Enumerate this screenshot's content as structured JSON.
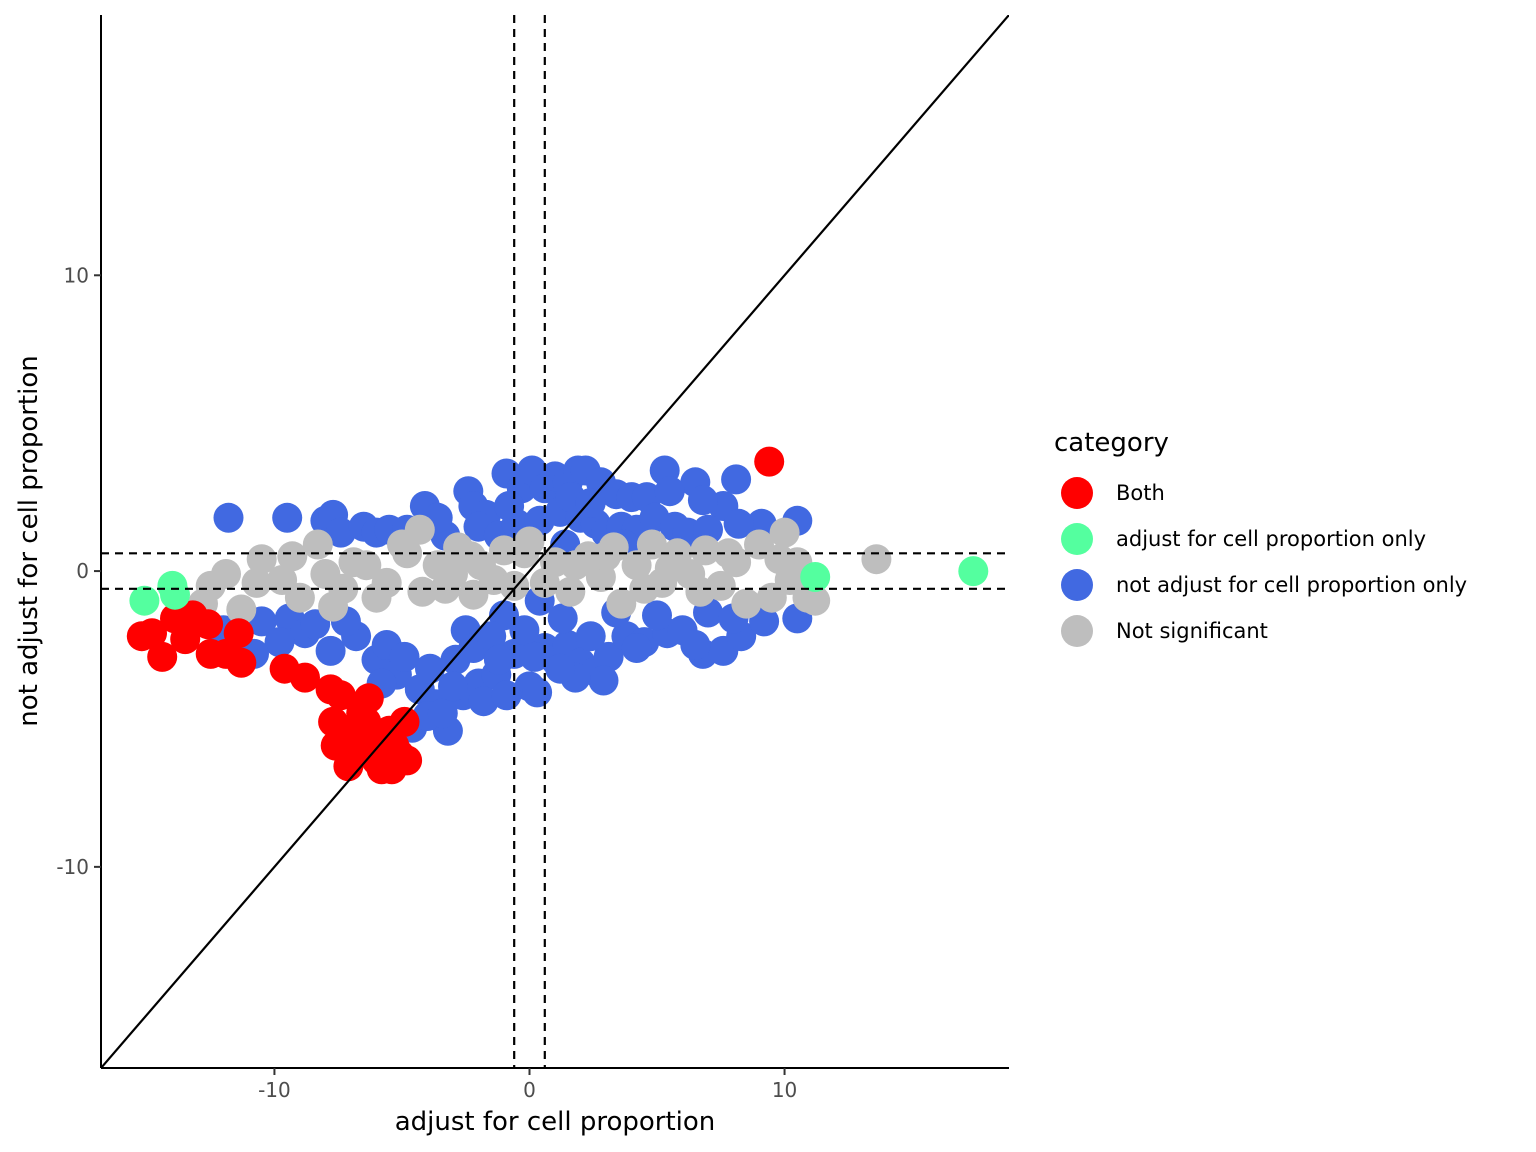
{
  "chart_data": {
    "type": "scatter",
    "xlabel": "adjust for cell proportion",
    "ylabel": "not adjust for cell proportion",
    "xlim": [
      -16.8,
      18.8
    ],
    "ylim": [
      -16.8,
      18.8
    ],
    "x_ticks": [
      -10,
      0,
      10
    ],
    "x_tick_labels": [
      "-10",
      "0",
      "10"
    ],
    "y_ticks": [
      -10,
      0,
      10
    ],
    "y_tick_labels": [
      "-10",
      "0",
      "10"
    ],
    "grid": false,
    "legend": {
      "title": "category",
      "placement": "right",
      "entries": [
        {
          "label": "Both",
          "color": "#ff0000"
        },
        {
          "label": "adjust for cell proportion only",
          "color": "#54ff9f"
        },
        {
          "label": "not adjust for cell proportion only",
          "color": "#4169e1"
        },
        {
          "label": "Not significant",
          "color": "#bebebe"
        }
      ]
    },
    "reference_lines": {
      "identity_line": true,
      "vertical_dashed_x": [
        -0.6,
        0.6
      ],
      "horizontal_dashed_y": [
        -0.6,
        0.6
      ]
    },
    "series": [
      {
        "name": "not adjust for cell proportion only",
        "color": "#4169e1",
        "points": [
          [
            -11.8,
            1.8
          ],
          [
            -9.5,
            1.8
          ],
          [
            -8,
            1.7
          ],
          [
            -7.7,
            1.9
          ],
          [
            -7.4,
            1.3
          ],
          [
            -6.5,
            1.5
          ],
          [
            -6,
            1.3
          ],
          [
            -5.5,
            1.4
          ],
          [
            -4.1,
            2.2
          ],
          [
            -3.3,
            1.2
          ],
          [
            -2.4,
            2.7
          ],
          [
            -2.2,
            2.2
          ],
          [
            -1.7,
            1.9
          ],
          [
            -0.9,
            3.3
          ],
          [
            -0.3,
            2.8
          ],
          [
            0.1,
            3.4
          ],
          [
            0.6,
            2.8
          ],
          [
            1,
            3.2
          ],
          [
            1.5,
            3
          ],
          [
            1.9,
            3.4
          ],
          [
            2.2,
            3.4
          ],
          [
            2.8,
            3
          ],
          [
            3.4,
            2.6
          ],
          [
            4,
            2.5
          ],
          [
            4.6,
            2.5
          ],
          [
            5.3,
            3.4
          ],
          [
            6.5,
            3
          ],
          [
            7.6,
            2.2
          ],
          [
            8.1,
            3.1
          ],
          [
            9.1,
            1.6
          ],
          [
            10.5,
            1.7
          ],
          [
            -2,
            1.5
          ],
          [
            -1.2,
            1.2
          ],
          [
            -0.5,
            1.6
          ],
          [
            0.4,
            1.7
          ],
          [
            1.2,
            2
          ],
          [
            2,
            1.8
          ],
          [
            2.6,
            1.6
          ],
          [
            3,
            1.3
          ],
          [
            3.6,
            1.5
          ],
          [
            4.2,
            1.4
          ],
          [
            4.9,
            1.8
          ],
          [
            5.7,
            1.5
          ],
          [
            6.2,
            1.3
          ],
          [
            7,
            1.4
          ],
          [
            8.2,
            1.6
          ],
          [
            1.4,
            0.9
          ],
          [
            3.7,
            0.9
          ],
          [
            -0.8,
            2.2
          ],
          [
            1.6,
            2.5
          ],
          [
            2.4,
            2.3
          ],
          [
            -3.6,
            1.8
          ],
          [
            -4.8,
            1.4
          ],
          [
            5.5,
            2.7
          ],
          [
            6.8,
            2.4
          ],
          [
            -12,
            -2
          ],
          [
            -10.5,
            -1.7
          ],
          [
            -9.4,
            -1.6
          ],
          [
            -8.8,
            -2.1
          ],
          [
            -7.8,
            -2.7
          ],
          [
            -6.8,
            -2.2
          ],
          [
            -6,
            -3
          ],
          [
            -5.2,
            -3.5
          ],
          [
            -4.3,
            -4
          ],
          [
            -3.7,
            -4.5
          ],
          [
            -3.2,
            -5.4
          ],
          [
            -2.6,
            -4.2
          ],
          [
            -2,
            -3.8
          ],
          [
            -1.3,
            -3.5
          ],
          [
            -0.6,
            -2.8
          ],
          [
            0,
            -3.9
          ],
          [
            0.6,
            -2.6
          ],
          [
            1,
            -3
          ],
          [
            1.5,
            -2.5
          ],
          [
            2,
            -3.1
          ],
          [
            2.6,
            -3.4
          ],
          [
            3.1,
            -2.9
          ],
          [
            3.8,
            -2.2
          ],
          [
            4.5,
            -2.4
          ],
          [
            5.4,
            -2.1
          ],
          [
            6,
            -2
          ],
          [
            6.8,
            -2.8
          ],
          [
            7.6,
            -2.7
          ],
          [
            8.3,
            -2.2
          ],
          [
            9.2,
            -1.7
          ],
          [
            10.5,
            -1.6
          ],
          [
            -4.6,
            -5.3
          ],
          [
            -4,
            -4.9
          ],
          [
            -3.4,
            -4.8
          ],
          [
            -1.8,
            -4.4
          ],
          [
            -0.9,
            -4.2
          ],
          [
            0.3,
            -4.1
          ],
          [
            2.9,
            -3.7
          ],
          [
            1.8,
            -3.6
          ],
          [
            0.4,
            -1
          ],
          [
            -2.5,
            -2
          ],
          [
            -1,
            -1.5
          ],
          [
            1.3,
            -1.6
          ],
          [
            3.4,
            -1.4
          ],
          [
            5,
            -1.5
          ],
          [
            7,
            -1.4
          ],
          [
            8,
            -1.6
          ],
          [
            -8.4,
            -1.8
          ],
          [
            -9.8,
            -2.4
          ],
          [
            -10.8,
            -2.8
          ],
          [
            -7.2,
            -1.7
          ],
          [
            -5.6,
            -2.5
          ],
          [
            -4.9,
            -2.9
          ],
          [
            -3.9,
            -3.3
          ],
          [
            -2.9,
            -3
          ],
          [
            -2.2,
            -2.6
          ],
          [
            -1.5,
            -2.2
          ],
          [
            -0.2,
            -2
          ],
          [
            2.4,
            -2.2
          ],
          [
            4.2,
            -2.6
          ],
          [
            6.5,
            -2.5
          ],
          [
            -3,
            -3.9
          ],
          [
            -1.2,
            -3
          ],
          [
            0.2,
            -2.9
          ],
          [
            1.2,
            -3.3
          ],
          [
            -5.8,
            -3.8
          ]
        ]
      },
      {
        "name": "Not significant",
        "color": "#bebebe",
        "points": [
          [
            -12.8,
            -1.1
          ],
          [
            -12.5,
            -0.5
          ],
          [
            -11.3,
            -1.3
          ],
          [
            -10.7,
            -0.4
          ],
          [
            -10.5,
            0.4
          ],
          [
            -9.7,
            -0.3
          ],
          [
            -9,
            -0.9
          ],
          [
            -8.3,
            0.9
          ],
          [
            -8,
            -0.1
          ],
          [
            -7.3,
            -0.6
          ],
          [
            -6.9,
            0.3
          ],
          [
            -6.4,
            0.2
          ],
          [
            -5.6,
            -0.4
          ],
          [
            -4.8,
            0.6
          ],
          [
            -4.3,
            1.4
          ],
          [
            -4.2,
            -0.7
          ],
          [
            -3.6,
            0.2
          ],
          [
            -3,
            -0.1
          ],
          [
            -2.3,
            0.5
          ],
          [
            -2.2,
            -0.8
          ],
          [
            -1.4,
            -0.3
          ],
          [
            -1,
            0.7
          ],
          [
            -0.6,
            -0.5
          ],
          [
            0,
            1
          ],
          [
            0.6,
            -0.4
          ],
          [
            1,
            0.3
          ],
          [
            1.6,
            -0.7
          ],
          [
            2.3,
            0.5
          ],
          [
            2.8,
            -0.2
          ],
          [
            3.3,
            0.8
          ],
          [
            3.6,
            -1.1
          ],
          [
            4.2,
            0.2
          ],
          [
            4.8,
            0.9
          ],
          [
            5.2,
            -0.4
          ],
          [
            5.8,
            0.6
          ],
          [
            6.3,
            -0.1
          ],
          [
            6.9,
            0.7
          ],
          [
            7.5,
            -0.5
          ],
          [
            8.1,
            0.3
          ],
          [
            8.5,
            -1.1
          ],
          [
            9,
            0.9
          ],
          [
            9.5,
            -0.9
          ],
          [
            10,
            1.3
          ],
          [
            10.5,
            0.3
          ],
          [
            10.9,
            -0.9
          ],
          [
            11.2,
            -1
          ],
          [
            13.6,
            0.4
          ],
          [
            -11.9,
            -0.1
          ],
          [
            -7.7,
            -1.2
          ],
          [
            -5,
            0.9
          ],
          [
            -3.3,
            -0.6
          ],
          [
            -1.9,
            0.2
          ],
          [
            -0.2,
            0.6
          ],
          [
            1.8,
            0.2
          ],
          [
            3,
            0.5
          ],
          [
            4.5,
            -0.6
          ],
          [
            5.5,
            0.1
          ],
          [
            6.7,
            -0.7
          ],
          [
            7.8,
            0.6
          ],
          [
            9.8,
            0.4
          ],
          [
            10.2,
            -0.3
          ],
          [
            -9.3,
            0.5
          ],
          [
            -6,
            -0.9
          ],
          [
            -2.8,
            0.8
          ]
        ]
      },
      {
        "name": "Both",
        "color": "#ff0000",
        "points": [
          [
            9.4,
            3.7
          ],
          [
            -15.2,
            -2.2
          ],
          [
            -14.8,
            -2.1
          ],
          [
            -14.4,
            -2.9
          ],
          [
            -13.9,
            -1.6
          ],
          [
            -13.5,
            -2.3
          ],
          [
            -13.2,
            -1.5
          ],
          [
            -12.6,
            -1.8
          ],
          [
            -12.5,
            -2.8
          ],
          [
            -11.9,
            -2.8
          ],
          [
            -11.3,
            -3.1
          ],
          [
            -11.4,
            -2.1
          ],
          [
            -9.6,
            -3.3
          ],
          [
            -8.8,
            -3.6
          ],
          [
            -7.8,
            -4
          ],
          [
            -7.4,
            -4.2
          ],
          [
            -7.7,
            -5.1
          ],
          [
            -7.6,
            -5.9
          ],
          [
            -7.1,
            -6.6
          ],
          [
            -7,
            -5.4
          ],
          [
            -6.6,
            -4.8
          ],
          [
            -6.3,
            -4.3
          ],
          [
            -6.1,
            -5.6
          ],
          [
            -6,
            -6.4
          ],
          [
            -5.8,
            -6.7
          ],
          [
            -5.5,
            -5.4
          ],
          [
            -5.3,
            -5.9
          ],
          [
            -5.1,
            -6.2
          ],
          [
            -4.9,
            -5.1
          ],
          [
            -5.4,
            -6.7
          ],
          [
            -4.8,
            -6.4
          ],
          [
            -6.8,
            -5.9
          ],
          [
            -6.4,
            -5.1
          ]
        ]
      },
      {
        "name": "adjust for cell proportion only",
        "color": "#54ff9f",
        "points": [
          [
            -15.1,
            -1
          ],
          [
            -13.9,
            -0.8
          ],
          [
            -14,
            -0.5
          ],
          [
            11.2,
            -0.2
          ],
          [
            17.4,
            0
          ]
        ]
      }
    ]
  }
}
